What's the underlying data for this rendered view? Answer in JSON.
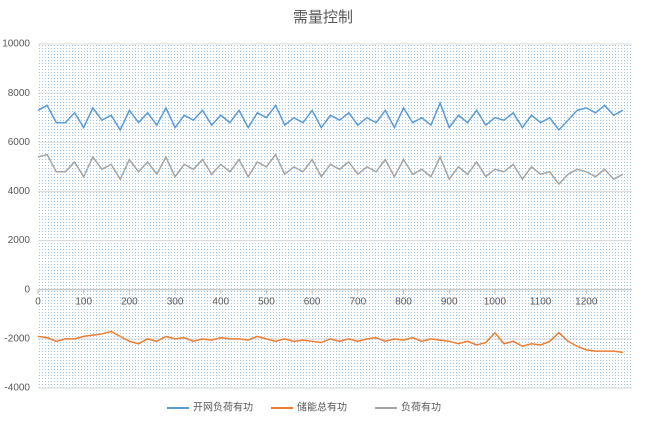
{
  "chart_data": {
    "type": "line",
    "title": "需量控制",
    "x": [
      0,
      20,
      40,
      60,
      80,
      100,
      120,
      140,
      160,
      180,
      200,
      220,
      240,
      260,
      280,
      300,
      320,
      340,
      360,
      380,
      400,
      420,
      440,
      460,
      480,
      500,
      520,
      540,
      560,
      580,
      600,
      620,
      640,
      660,
      680,
      700,
      720,
      740,
      760,
      780,
      800,
      820,
      840,
      860,
      880,
      900,
      920,
      940,
      960,
      980,
      1000,
      1020,
      1040,
      1060,
      1080,
      1100,
      1120,
      1140,
      1160,
      1180,
      1200,
      1220,
      1240,
      1260,
      1280
    ],
    "series": [
      {
        "name": "开网负荷有功",
        "color": "#5b9bd5",
        "values": [
          7300,
          7500,
          6800,
          6800,
          7200,
          6600,
          7400,
          6900,
          7100,
          6500,
          7300,
          6800,
          7200,
          6700,
          7400,
          6600,
          7100,
          6900,
          7300,
          6700,
          7100,
          6800,
          7300,
          6600,
          7200,
          7000,
          7500,
          6700,
          7000,
          6800,
          7300,
          6600,
          7100,
          6900,
          7200,
          6700,
          7000,
          6800,
          7300,
          6600,
          7400,
          6800,
          7000,
          6700,
          7600,
          6600,
          7100,
          6800,
          7300,
          6700,
          7000,
          6900,
          7200,
          6600,
          7100,
          6800,
          7000,
          6500,
          6900,
          7300,
          7400,
          7200,
          7500,
          7100,
          7300
        ]
      },
      {
        "name": "储能总有功",
        "color": "#ed7d31",
        "values": [
          -1900,
          -1950,
          -2100,
          -2000,
          -2000,
          -1900,
          -1850,
          -1800,
          -1700,
          -1900,
          -2100,
          -2200,
          -2000,
          -2100,
          -1900,
          -2000,
          -1950,
          -2100,
          -2000,
          -2050,
          -1950,
          -2000,
          -2000,
          -2050,
          -1900,
          -2000,
          -2100,
          -2000,
          -2100,
          -2050,
          -2100,
          -2150,
          -2000,
          -2100,
          -2000,
          -2100,
          -2000,
          -1950,
          -2100,
          -2000,
          -2050,
          -1950,
          -2100,
          -2000,
          -2050,
          -2100,
          -2200,
          -2100,
          -2250,
          -2150,
          -1750,
          -2200,
          -2100,
          -2300,
          -2200,
          -2250,
          -2100,
          -1750,
          -2100,
          -2300,
          -2450,
          -2500,
          -2500,
          -2500,
          -2550
        ]
      },
      {
        "name": "负荷有功",
        "color": "#a5a5a5",
        "values": [
          5400,
          5500,
          4800,
          4800,
          5200,
          4600,
          5400,
          4900,
          5100,
          4500,
          5300,
          4800,
          5200,
          4700,
          5400,
          4600,
          5100,
          4900,
          5300,
          4700,
          5100,
          4800,
          5300,
          4600,
          5200,
          5000,
          5500,
          4700,
          5000,
          4800,
          5300,
          4600,
          5100,
          4900,
          5200,
          4700,
          5000,
          4800,
          5300,
          4600,
          5300,
          4700,
          4900,
          4600,
          5400,
          4500,
          5000,
          4700,
          5200,
          4600,
          4900,
          4800,
          5100,
          4500,
          5000,
          4700,
          4800,
          4300,
          4700,
          4900,
          4800,
          4600,
          4900,
          4500,
          4700
        ]
      }
    ],
    "xlim": [
      0,
      1300
    ],
    "xticks": [
      0,
      100,
      200,
      300,
      400,
      500,
      600,
      700,
      800,
      900,
      1000,
      1100,
      1200
    ],
    "ylim": [
      -4000,
      10000
    ],
    "yticks": [
      -4000,
      -2000,
      0,
      2000,
      4000,
      6000,
      8000,
      10000
    ],
    "grid": true,
    "legend": "bottom"
  }
}
